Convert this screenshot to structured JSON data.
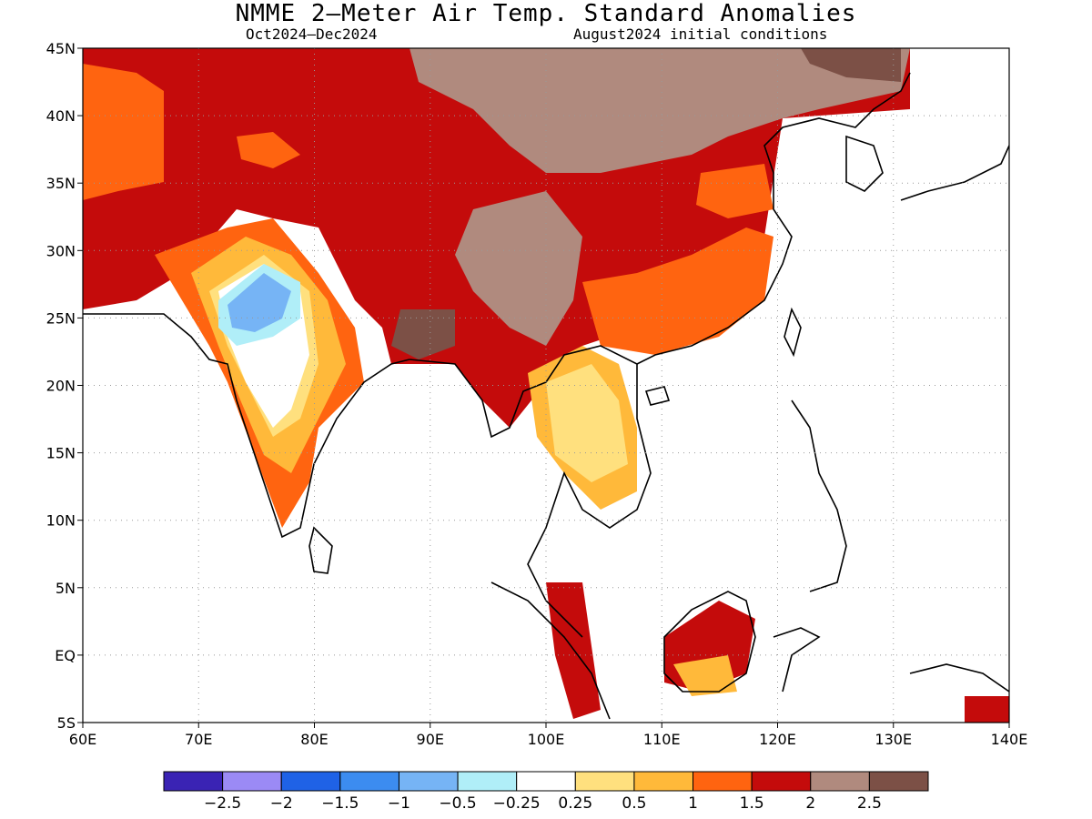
{
  "title": "NMME 2–Meter Air Temp. Standard Anomalies",
  "subtitle_left": "Oct2024–Dec2024",
  "subtitle_right": "August2024 initial conditions",
  "map": {
    "lon_range": [
      60,
      140
    ],
    "lat_range": [
      -5,
      45
    ],
    "lon_ticks": [
      {
        "value": 60,
        "label": "60E"
      },
      {
        "value": 70,
        "label": "70E"
      },
      {
        "value": 80,
        "label": "80E"
      },
      {
        "value": 90,
        "label": "90E"
      },
      {
        "value": 100,
        "label": "100E"
      },
      {
        "value": 110,
        "label": "110E"
      },
      {
        "value": 120,
        "label": "120E"
      },
      {
        "value": 130,
        "label": "130E"
      },
      {
        "value": 140,
        "label": "140E"
      }
    ],
    "lat_ticks": [
      {
        "value": 45,
        "label": "45N"
      },
      {
        "value": 40,
        "label": "40N"
      },
      {
        "value": 35,
        "label": "35N"
      },
      {
        "value": 30,
        "label": "30N"
      },
      {
        "value": 25,
        "label": "25N"
      },
      {
        "value": 20,
        "label": "20N"
      },
      {
        "value": 15,
        "label": "15N"
      },
      {
        "value": 10,
        "label": "10N"
      },
      {
        "value": 5,
        "label": "5N"
      },
      {
        "value": 0,
        "label": "EQ"
      },
      {
        "value": -5,
        "label": "5S"
      }
    ],
    "grid": true
  },
  "legend": {
    "colors": [
      "#3a23b4",
      "#9b8af5",
      "#1f62e6",
      "#3c8cf0",
      "#76b4f5",
      "#b0eef8",
      "#ffffff",
      "#ffe07e",
      "#ffb93a",
      "#ff6410",
      "#c40b0b",
      "#b08a7e",
      "#7c5046"
    ],
    "labels": [
      "−2.5",
      "−2",
      "−1.5",
      "−1",
      "−0.5",
      "−0.25",
      "0.25",
      "0.5",
      "1",
      "1.5",
      "2",
      "2.5"
    ]
  }
}
